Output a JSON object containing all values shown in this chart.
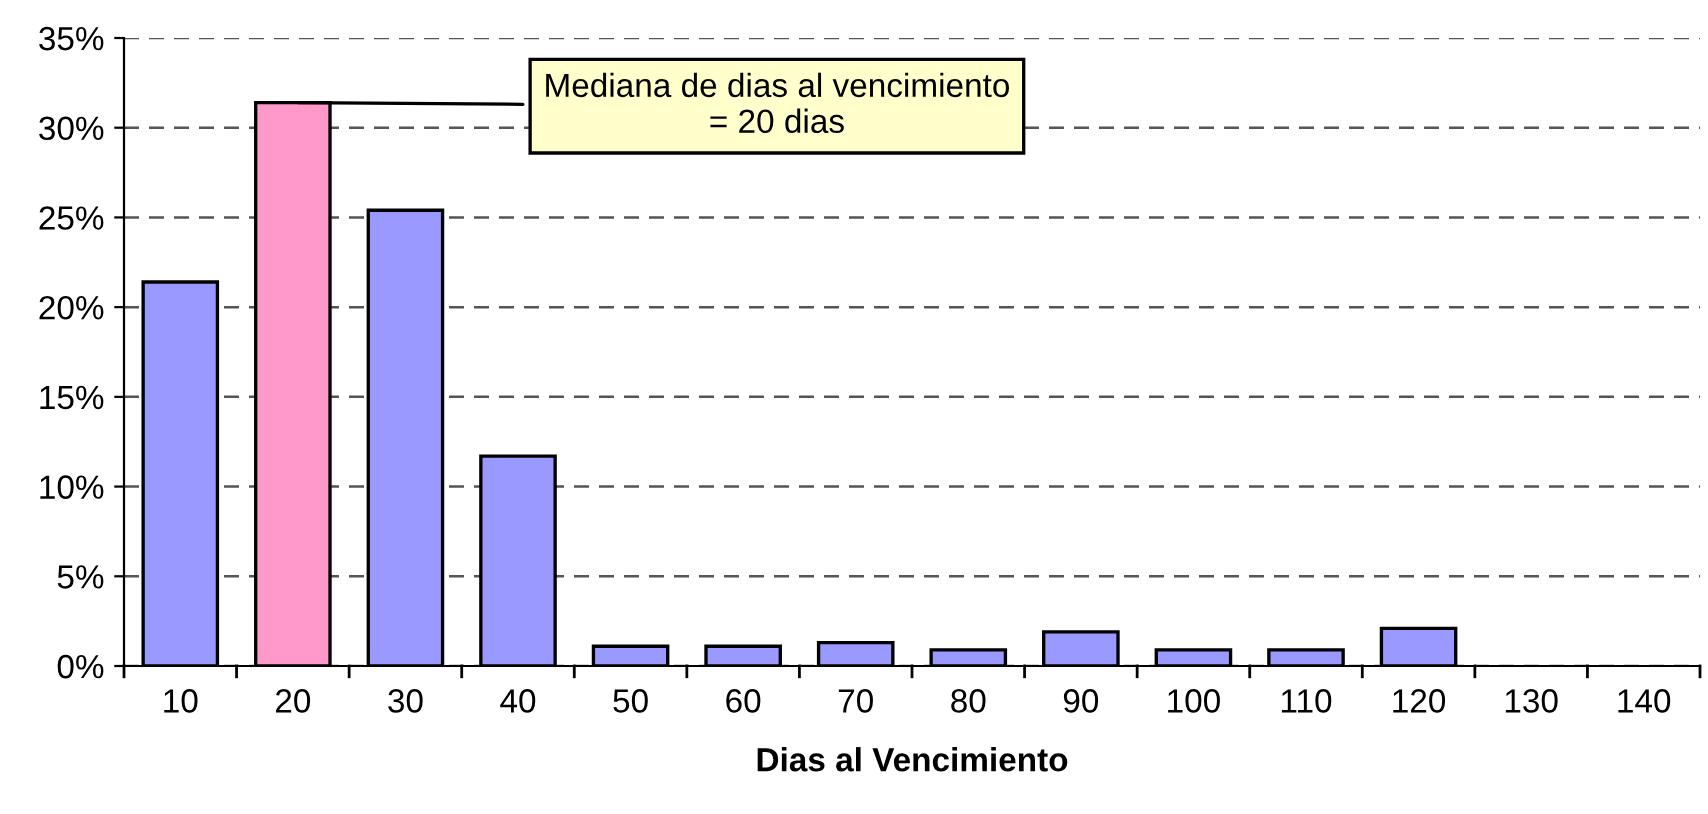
{
  "chart_data": {
    "type": "bar",
    "xlabel": "Dias al Vencimiento",
    "categories": [
      "10",
      "20",
      "30",
      "40",
      "50",
      "60",
      "70",
      "80",
      "90",
      "100",
      "110",
      "120",
      "130",
      "140"
    ],
    "values": [
      21.4,
      31.4,
      25.4,
      11.7,
      1.1,
      1.1,
      1.3,
      0.9,
      1.9,
      0.9,
      0.9,
      2.1,
      0,
      0
    ],
    "colors": [
      "#9999ff",
      "#ff99cc",
      "#9999ff",
      "#9999ff",
      "#9999ff",
      "#9999ff",
      "#9999ff",
      "#9999ff",
      "#9999ff",
      "#9999ff",
      "#9999ff",
      "#9999ff",
      "#9999ff",
      "#9999ff"
    ],
    "ylim": [
      0,
      35
    ],
    "yticks": [
      {
        "value": 0,
        "label": "0%"
      },
      {
        "value": 5,
        "label": "5%"
      },
      {
        "value": 10,
        "label": "10%"
      },
      {
        "value": 15,
        "label": "15%"
      },
      {
        "value": 20,
        "label": "20%"
      },
      {
        "value": 25,
        "label": "25%"
      },
      {
        "value": 30,
        "label": "30%"
      },
      {
        "value": 35,
        "label": "35%"
      }
    ],
    "grid": "y",
    "annotations": [
      {
        "text": "Mediana de dias al vencimiento\n= 20 dias",
        "x": "20",
        "y": 31.4
      }
    ]
  }
}
